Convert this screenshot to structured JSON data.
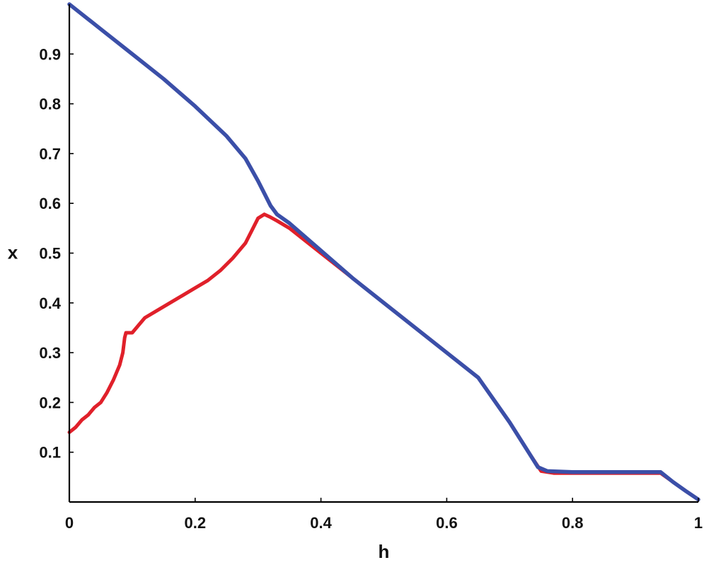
{
  "chart_data": {
    "type": "line",
    "title": "",
    "xlabel": "h",
    "ylabel": "x",
    "xlim": [
      0,
      1
    ],
    "ylim": [
      0,
      1
    ],
    "x_ticks": [
      0,
      0.2,
      0.4,
      0.6,
      0.8,
      1
    ],
    "x_tick_labels": [
      "0",
      "0.2",
      "0.4",
      "0.6",
      "0.8",
      "1"
    ],
    "y_ticks": [
      0.1,
      0.2,
      0.3,
      0.4,
      0.5,
      0.6,
      0.7,
      0.8,
      0.9
    ],
    "y_tick_labels": [
      "0.1",
      "0.2",
      "0.3",
      "0.4",
      "0.5",
      "0.6",
      "0.7",
      "0.8",
      "0.9"
    ],
    "grid": false,
    "legend": "none",
    "series": [
      {
        "color": "#e0202a",
        "points": [
          [
            0.0,
            0.14
          ],
          [
            0.01,
            0.15
          ],
          [
            0.02,
            0.165
          ],
          [
            0.03,
            0.175
          ],
          [
            0.04,
            0.19
          ],
          [
            0.05,
            0.2
          ],
          [
            0.06,
            0.22
          ],
          [
            0.07,
            0.245
          ],
          [
            0.08,
            0.275
          ],
          [
            0.085,
            0.3
          ],
          [
            0.088,
            0.33
          ],
          [
            0.09,
            0.34
          ],
          [
            0.1,
            0.34
          ],
          [
            0.11,
            0.355
          ],
          [
            0.12,
            0.37
          ],
          [
            0.14,
            0.385
          ],
          [
            0.16,
            0.4
          ],
          [
            0.18,
            0.415
          ],
          [
            0.2,
            0.43
          ],
          [
            0.22,
            0.445
          ],
          [
            0.24,
            0.465
          ],
          [
            0.26,
            0.49
          ],
          [
            0.28,
            0.52
          ],
          [
            0.29,
            0.545
          ],
          [
            0.3,
            0.57
          ],
          [
            0.31,
            0.578
          ],
          [
            0.32,
            0.572
          ],
          [
            0.33,
            0.565
          ],
          [
            0.35,
            0.55
          ],
          [
            0.4,
            0.5
          ],
          [
            0.45,
            0.45
          ],
          [
            0.5,
            0.4
          ],
          [
            0.55,
            0.35
          ],
          [
            0.6,
            0.3
          ],
          [
            0.65,
            0.25
          ],
          [
            0.7,
            0.16
          ],
          [
            0.73,
            0.1
          ],
          [
            0.75,
            0.062
          ],
          [
            0.77,
            0.058
          ],
          [
            0.8,
            0.058
          ],
          [
            0.9,
            0.058
          ],
          [
            0.94,
            0.058
          ],
          [
            0.96,
            0.04
          ],
          [
            0.98,
            0.022
          ],
          [
            1.0,
            0.005
          ]
        ]
      },
      {
        "color": "#3b4fa8",
        "points": [
          [
            0.0,
            1.0
          ],
          [
            0.05,
            0.95
          ],
          [
            0.1,
            0.9
          ],
          [
            0.15,
            0.85
          ],
          [
            0.2,
            0.795
          ],
          [
            0.25,
            0.735
          ],
          [
            0.28,
            0.69
          ],
          [
            0.3,
            0.645
          ],
          [
            0.31,
            0.62
          ],
          [
            0.32,
            0.595
          ],
          [
            0.33,
            0.578
          ],
          [
            0.35,
            0.56
          ],
          [
            0.4,
            0.505
          ],
          [
            0.45,
            0.45
          ],
          [
            0.5,
            0.4
          ],
          [
            0.55,
            0.35
          ],
          [
            0.6,
            0.3
          ],
          [
            0.65,
            0.25
          ],
          [
            0.7,
            0.16
          ],
          [
            0.73,
            0.1
          ],
          [
            0.745,
            0.07
          ],
          [
            0.76,
            0.062
          ],
          [
            0.8,
            0.06
          ],
          [
            0.9,
            0.06
          ],
          [
            0.94,
            0.06
          ],
          [
            0.96,
            0.04
          ],
          [
            0.98,
            0.022
          ],
          [
            1.0,
            0.005
          ]
        ]
      }
    ]
  }
}
